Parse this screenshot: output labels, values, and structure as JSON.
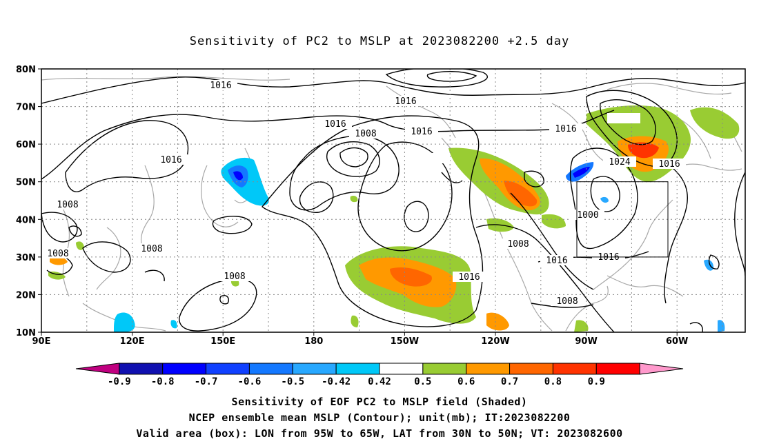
{
  "title": "Sensitivity of PC2 to MSLP at 2023082200 +2.5 day",
  "lat_labels": [
    "80N",
    "70N",
    "60N",
    "50N",
    "40N",
    "30N",
    "20N",
    "10N"
  ],
  "lon_labels": [
    "90E",
    "120E",
    "150E",
    "180",
    "150W",
    "120W",
    "90W",
    "60W"
  ],
  "contour_labels": [
    "1016",
    "1016",
    "1016",
    "1016",
    "1016",
    "1016",
    "1016",
    "1016",
    "1016",
    "1016",
    "1008",
    "1008",
    "1008",
    "1008",
    "1008",
    "1008",
    "1008",
    "1000",
    "1024"
  ],
  "colorbar": {
    "ticks": [
      "-0.9",
      "-0.8",
      "-0.7",
      "-0.6",
      "-0.5",
      "-0.42",
      "0.42",
      "0.5",
      "0.6",
      "0.7",
      "0.8",
      "0.9"
    ],
    "colors": [
      "#c00080",
      "#1010b0",
      "#0000ff",
      "#1040ff",
      "#1478ff",
      "#28a8ff",
      "#00c8f8",
      "#ffffff",
      "#99cc33",
      "#ff9900",
      "#ff6600",
      "#ff3300",
      "#ff0000",
      "#ff99cc"
    ]
  },
  "footer": {
    "line1": "Sensitivity of EOF PC2 to MSLP field (Shaded)",
    "line2": "NCEP ensemble mean MSLP (Contour); unit(mb); IT:2023082200",
    "line3": "Valid area (box): LON from 95W to 65W, LAT from 30N to 50N; VT: 2023082600"
  }
}
